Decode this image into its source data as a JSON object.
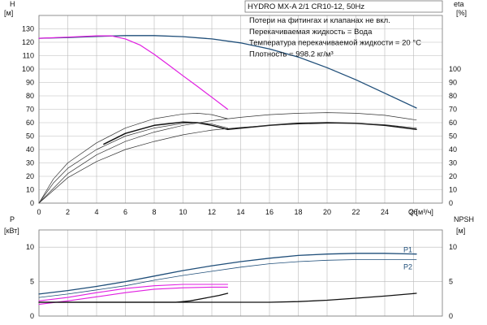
{
  "chart_data": [
    {
      "type": "line",
      "title": "HYDRO MX-A 2/1 CR10-12, 50Hz",
      "annotations": [
        "Потери на фитингах и клапанах не вкл.",
        "Перекачиваемая жидкость = Вода",
        "Температура перекачиваемой жидкости = 20 °C",
        "Плотность = 998.2 кг/м³"
      ],
      "xlabel": "Q [м³/ч]",
      "xlim": [
        0,
        28
      ],
      "x_ticks": [
        0,
        2,
        4,
        6,
        8,
        10,
        12,
        14,
        16,
        18,
        20,
        22,
        24,
        26
      ],
      "ylabel_left": [
        "H",
        "[м]"
      ],
      "ylim_left": [
        0,
        140
      ],
      "y_ticks_left": [
        0,
        10,
        20,
        30,
        40,
        50,
        60,
        70,
        80,
        90,
        100,
        110,
        120,
        130
      ],
      "ylabel_right": [
        "eta",
        "[%]"
      ],
      "ylim_right": [
        0,
        140
      ],
      "y_ticks_right": [
        0,
        10,
        20,
        30,
        40,
        50,
        60,
        70,
        80,
        90,
        100
      ],
      "grid": true,
      "series": [
        {
          "color": "#1f4e79",
          "width": 1.3,
          "axis": "left",
          "x": [
            0,
            2,
            4,
            6,
            8,
            10,
            12,
            14,
            16,
            18,
            20,
            22,
            24,
            26.2
          ],
          "values": [
            123,
            123.5,
            124.3,
            125,
            125,
            124.2,
            122.5,
            119.5,
            115,
            109,
            101,
            92,
            82,
            71
          ]
        },
        {
          "color": "#e11ee1",
          "width": 1.2,
          "axis": "left",
          "x": [
            0,
            2,
            4,
            5,
            6,
            7,
            8,
            9,
            10,
            11,
            12,
            13.1
          ],
          "values": [
            123,
            123.8,
            124.8,
            124.8,
            122.5,
            118,
            111,
            103,
            95,
            87,
            79,
            70
          ]
        },
        {
          "color": "#111111",
          "width": 1.5,
          "axis": "right",
          "x": [
            4.5,
            6,
            8,
            10,
            11,
            12,
            13.1
          ],
          "values": [
            44,
            52,
            58,
            60.5,
            60,
            58,
            55
          ]
        },
        {
          "color": "#111111",
          "width": 1.5,
          "axis": "right",
          "x": [
            13.1,
            16,
            18,
            20,
            22,
            24,
            26.2
          ],
          "values": [
            55,
            58,
            59.5,
            60,
            59.5,
            58,
            55
          ]
        },
        {
          "color": "#333333",
          "width": 0.7,
          "axis": "right",
          "x": [
            0,
            1,
            2,
            4,
            6,
            8,
            10,
            11,
            12,
            13.1
          ],
          "values": [
            0,
            18,
            30,
            45,
            56,
            63,
            66.5,
            67,
            66,
            63
          ]
        },
        {
          "color": "#333333",
          "width": 0.7,
          "axis": "right",
          "x": [
            0,
            1,
            2,
            4,
            6,
            8,
            10,
            11,
            12,
            13.1
          ],
          "values": [
            0,
            15,
            26,
            40,
            50,
            56,
            59.5,
            60,
            59,
            56
          ]
        },
        {
          "color": "#333333",
          "width": 0.7,
          "axis": "right",
          "x": [
            0,
            2,
            4,
            6,
            8,
            10,
            12,
            14,
            16,
            18,
            20,
            22,
            24,
            26.2
          ],
          "values": [
            0,
            22,
            36,
            46,
            53,
            58,
            61.5,
            64,
            66,
            67,
            67.5,
            67,
            65.5,
            62
          ]
        },
        {
          "color": "#333333",
          "width": 0.7,
          "axis": "right",
          "x": [
            0,
            2,
            4,
            6,
            8,
            10,
            12,
            14,
            16,
            18,
            20,
            22,
            24,
            26.2
          ],
          "values": [
            0,
            19,
            31,
            40,
            46,
            51,
            54.5,
            56.5,
            58,
            59,
            59.5,
            59.5,
            58.5,
            56
          ]
        }
      ]
    },
    {
      "type": "line",
      "xlim": [
        0,
        28
      ],
      "x_ticks": [
        0,
        2,
        4,
        6,
        8,
        10,
        12,
        14,
        16,
        18,
        20,
        22,
        24,
        26
      ],
      "ylabel_left": [
        "P",
        "[кВт]"
      ],
      "ylim_left": [
        0,
        12.5
      ],
      "y_ticks_left": [
        0,
        5,
        10
      ],
      "ylabel_right": [
        "NPSH",
        "[м]"
      ],
      "ylim_right": [
        0,
        12.5
      ],
      "y_ticks_right": [
        0,
        5,
        10
      ],
      "grid": true,
      "series": [
        {
          "name": "P1",
          "color": "#1f4e79",
          "width": 1.3,
          "x": [
            0,
            2,
            4,
            6,
            8,
            10,
            12,
            14,
            16,
            18,
            20,
            22,
            24,
            26.2
          ],
          "values": [
            3.2,
            3.7,
            4.3,
            5.0,
            5.8,
            6.6,
            7.3,
            7.9,
            8.4,
            8.8,
            9.0,
            9.1,
            9.1,
            9.0
          ]
        },
        {
          "name": "P2",
          "color": "#1f4e79",
          "width": 0.8,
          "x": [
            0,
            2,
            4,
            6,
            8,
            10,
            12,
            14,
            16,
            18,
            20,
            22,
            24,
            26.2
          ],
          "values": [
            2.7,
            3.2,
            3.8,
            4.4,
            5.2,
            5.9,
            6.5,
            7.1,
            7.6,
            7.9,
            8.1,
            8.2,
            8.2,
            8.2
          ]
        },
        {
          "color": "#e11ee1",
          "width": 1.1,
          "x": [
            0,
            2,
            4,
            6,
            8,
            10,
            12,
            13.1
          ],
          "values": [
            2.2,
            2.7,
            3.4,
            4.0,
            4.4,
            4.6,
            4.6,
            4.6
          ]
        },
        {
          "color": "#e11ee1",
          "width": 1.1,
          "x": [
            0,
            2,
            4,
            6,
            8,
            10,
            12,
            13.1
          ],
          "values": [
            1.7,
            2.2,
            2.8,
            3.4,
            3.9,
            4.1,
            4.2,
            4.2
          ]
        },
        {
          "color": "#111111",
          "width": 1.3,
          "x": [
            0,
            4,
            8,
            9.5,
            10.5,
            11.5,
            12.5,
            13.1
          ],
          "values": [
            2.0,
            2.0,
            2.0,
            2.0,
            2.2,
            2.6,
            3.0,
            3.3
          ]
        },
        {
          "color": "#111111",
          "width": 1.3,
          "x": [
            0,
            6,
            10,
            12,
            14,
            16,
            18,
            20,
            22,
            24,
            26.2
          ],
          "values": [
            2.0,
            2.0,
            2.0,
            2.0,
            2.0,
            2.0,
            2.1,
            2.3,
            2.6,
            2.9,
            3.3
          ]
        }
      ]
    }
  ]
}
